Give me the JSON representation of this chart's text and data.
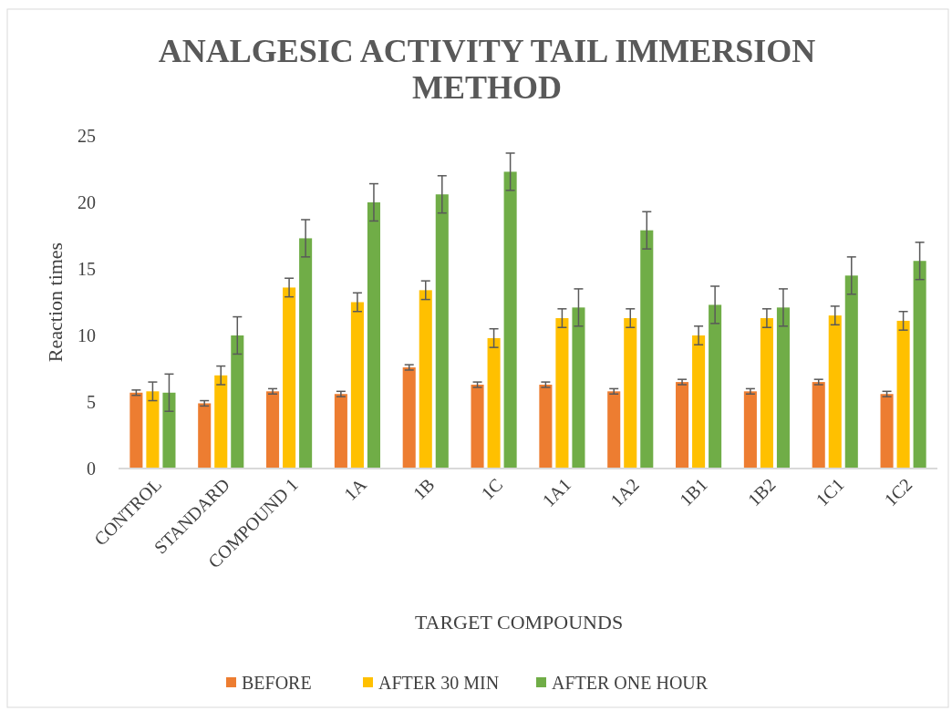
{
  "chart_data": {
    "type": "bar",
    "title": "ANALGESIC ACTIVITY TAIL IMMERSION METHOD",
    "xlabel": "TARGET COMPOUNDS",
    "ylabel": "Reaction times",
    "categories": [
      "CONTROL",
      "STANDARD",
      "COMPOUND 1",
      "1A",
      "1B",
      "1C",
      "1A1",
      "1A2",
      "1B1",
      "1B2",
      "1C1",
      "1C2"
    ],
    "series": [
      {
        "name": "BEFORE",
        "color": "#ed7d31",
        "values": [
          5.7,
          4.9,
          5.8,
          5.6,
          7.6,
          6.3,
          6.3,
          5.8,
          6.5,
          5.8,
          6.5,
          5.6
        ],
        "errors": [
          0.2,
          0.2,
          0.2,
          0.2,
          0.2,
          0.2,
          0.2,
          0.2,
          0.2,
          0.2,
          0.2,
          0.2
        ]
      },
      {
        "name": "AFTER 30 MIN",
        "color": "#ffc000",
        "values": [
          5.8,
          7,
          13.6,
          12.5,
          13.4,
          9.8,
          11.3,
          11.3,
          10,
          11.3,
          11.5,
          11.1
        ],
        "errors": [
          0.7,
          0.7,
          0.7,
          0.7,
          0.7,
          0.7,
          0.7,
          0.7,
          0.7,
          0.7,
          0.7,
          0.7
        ]
      },
      {
        "name": "AFTER ONE HOUR",
        "color": "#70ad47",
        "values": [
          5.7,
          10,
          17.3,
          20,
          20.6,
          22.3,
          12.1,
          17.9,
          12.3,
          12.1,
          14.5,
          15.6
        ],
        "errors": [
          1.4,
          1.4,
          1.4,
          1.4,
          1.4,
          1.4,
          1.4,
          1.4,
          1.4,
          1.4,
          1.4,
          1.4
        ]
      }
    ],
    "ylim": [
      0,
      25
    ],
    "yticks": [
      0,
      5,
      10,
      15,
      20,
      25
    ],
    "grid": false,
    "legend": "bottom"
  }
}
